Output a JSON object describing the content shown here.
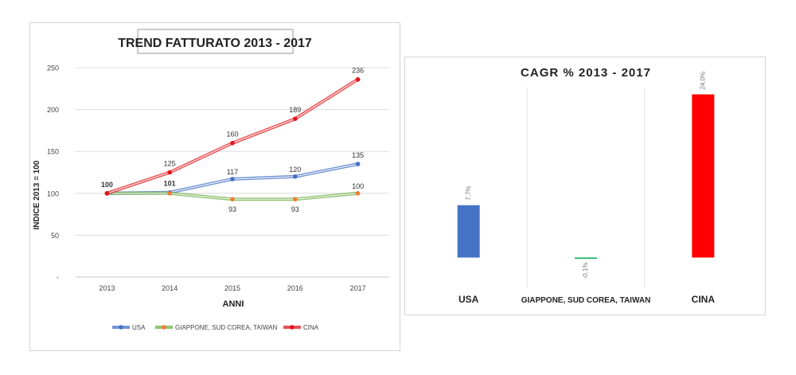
{
  "chart_data": [
    {
      "type": "line",
      "title": "TREND FATTURATO 2013 - 2017",
      "xlabel": "ANNI",
      "ylabel": "INDICE 2013 = 100",
      "categories": [
        "2013",
        "2014",
        "2015",
        "2016",
        "2017"
      ],
      "ylim": [
        0,
        250
      ],
      "yticks": [
        0,
        50,
        100,
        150,
        200,
        250
      ],
      "ytick_labels": [
        "-",
        "50",
        "100",
        "150",
        "200",
        "250"
      ],
      "grid": true,
      "legend": "bottom",
      "series": [
        {
          "name": "USA",
          "values": [
            100,
            101,
            117,
            120,
            135
          ],
          "labels": [
            "",
            "101",
            "117",
            "120",
            "135"
          ],
          "color": "#4472c4"
        },
        {
          "name": "GIAPPONE, SUD COREA, TAIWAN",
          "values": [
            100,
            100,
            93,
            93,
            100
          ],
          "labels": [
            "",
            "",
            "93",
            "93",
            "100"
          ],
          "color": "#70ad47",
          "marker_color": "#ed7d31"
        },
        {
          "name": "CINA",
          "values": [
            100,
            125,
            160,
            189,
            236
          ],
          "labels": [
            "100",
            "125",
            "160",
            "189",
            "236"
          ],
          "color": "#e0161c"
        }
      ]
    },
    {
      "type": "bar",
      "title": "CAGR % 2013 - 2017",
      "categories": [
        "USA",
        "GIAPPONE, SUD COREA, TAIWAN",
        "CINA"
      ],
      "values": [
        7.7,
        -0.1,
        24.0
      ],
      "value_labels": [
        "7,7%",
        "-0,1%",
        "24,0%"
      ],
      "colors": [
        "#4472c4",
        "#00b050",
        "#ff0000"
      ],
      "ylim": [
        -1,
        25
      ],
      "grid": false
    }
  ]
}
